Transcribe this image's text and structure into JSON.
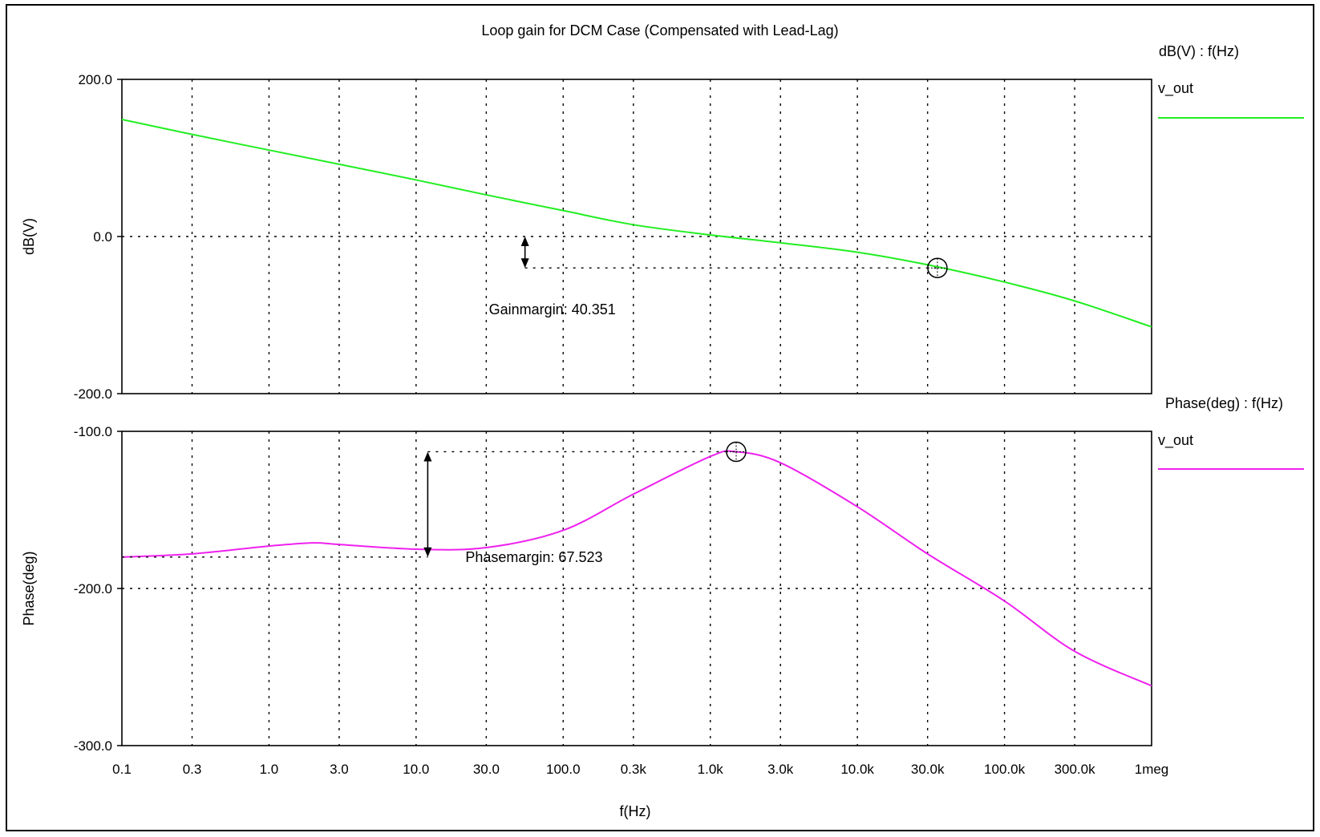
{
  "chart_data": {
    "type": "line",
    "title": "Loop gain for DCM Case (Compensated with Lead-Lag)",
    "xlabel": "f(Hz)",
    "x_scale": "log",
    "xlim": [
      0.1,
      1000000
    ],
    "x_ticks": [
      {
        "value": 0.1,
        "label": "0.1"
      },
      {
        "value": 0.3,
        "label": "0.3"
      },
      {
        "value": 1,
        "label": "1.0"
      },
      {
        "value": 3,
        "label": "3.0"
      },
      {
        "value": 10,
        "label": "10.0"
      },
      {
        "value": 30,
        "label": "30.0"
      },
      {
        "value": 100,
        "label": "100.0"
      },
      {
        "value": 300,
        "label": "0.3k"
      },
      {
        "value": 1000,
        "label": "1.0k"
      },
      {
        "value": 3000,
        "label": "3.0k"
      },
      {
        "value": 10000,
        "label": "10.0k"
      },
      {
        "value": 30000,
        "label": "30.0k"
      },
      {
        "value": 100000,
        "label": "100.0k"
      },
      {
        "value": 300000,
        "label": "300.0k"
      },
      {
        "value": 1000000,
        "label": "1meg"
      }
    ],
    "grid": true,
    "panels": [
      {
        "ylabel": "dB(V)",
        "ylim": [
          -200,
          200
        ],
        "y_ticks": [
          {
            "value": 200,
            "label": "200.0"
          },
          {
            "value": 0,
            "label": "0.0"
          },
          {
            "value": -200,
            "label": "-200.0"
          }
        ],
        "legend_title": "dB(V) : f(Hz)",
        "legend_placement": "right",
        "color": "#22ee22",
        "series": [
          {
            "name": "v_out",
            "x": [
              0.1,
              0.3,
              1,
              3,
              10,
              30,
              100,
              300,
              1000,
              3000,
              10000,
              30000,
              100000,
              300000,
              1000000
            ],
            "y": [
              149,
              130,
              110,
              92,
              72,
              53,
              33,
              15,
              2,
              -8,
              -20,
              -36,
              -58,
              -82,
              -115
            ]
          }
        ],
        "marker": {
          "x": 35000,
          "y": -40
        },
        "annotation": {
          "label": "Gainmargin: 40.351",
          "x_at": 55,
          "from": 0,
          "to": -40
        }
      },
      {
        "ylabel": "Phase(deg)",
        "ylim": [
          -300,
          -100
        ],
        "y_ticks": [
          {
            "value": -100,
            "label": "-100.0"
          },
          {
            "value": -200,
            "label": "-200.0"
          },
          {
            "value": -300,
            "label": "-300.0"
          }
        ],
        "legend_title": "Phase(deg) : f(Hz)",
        "legend_placement": "right",
        "color": "#ee22ee",
        "series": [
          {
            "name": "v_out",
            "x": [
              0.1,
              0.3,
              1,
              2,
              3,
              10,
              30,
              100,
              300,
              1000,
              1500,
              3000,
              10000,
              30000,
              100000,
              300000,
              1000000
            ],
            "y": [
              -180,
              -178,
              -173,
              -171,
              -172,
              -175,
              -174,
              -163,
              -140,
              -116,
              -113,
              -120,
              -148,
              -178,
              -208,
              -240,
              -262
            ]
          }
        ],
        "marker": {
          "x": 1500,
          "y": -113
        },
        "annotation": {
          "label": "Phasemargin: 67.523",
          "x_at": 12,
          "from": -113,
          "to": -180
        }
      }
    ]
  }
}
